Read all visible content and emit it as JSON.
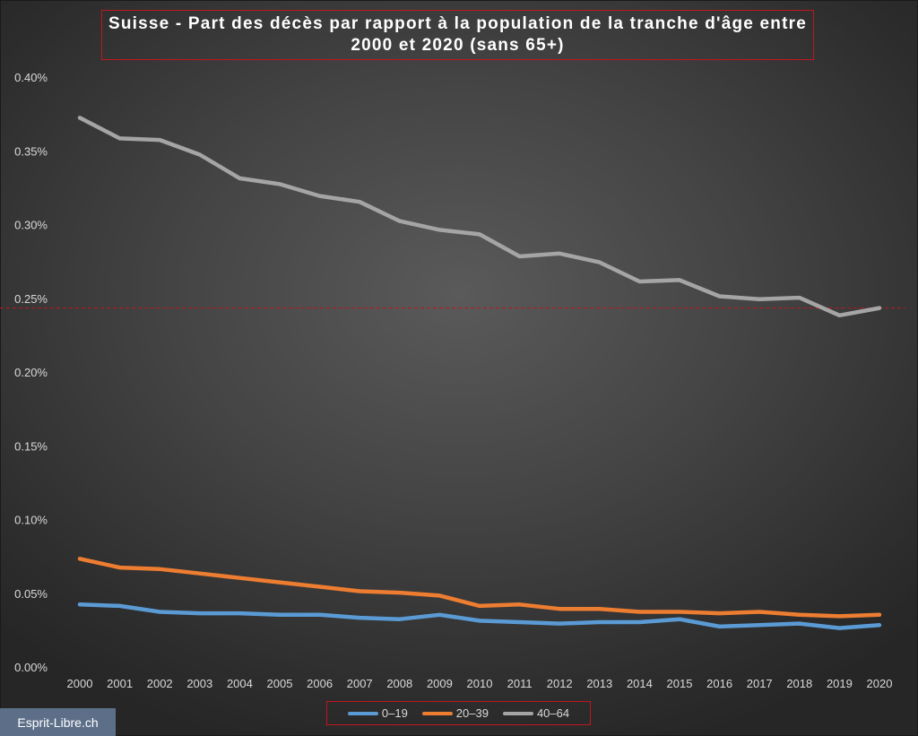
{
  "chart_data": {
    "type": "line",
    "title": "Suisse - Part des décès par rapport à la population de la tranche d'âge entre 2000 et 2020 (sans 65+)",
    "xlabel": "",
    "ylabel": "",
    "categories": [
      "2000",
      "2001",
      "2002",
      "2003",
      "2004",
      "2005",
      "2006",
      "2007",
      "2008",
      "2009",
      "2010",
      "2011",
      "2012",
      "2013",
      "2014",
      "2015",
      "2016",
      "2017",
      "2018",
      "2019",
      "2020"
    ],
    "ylim": [
      0,
      0.4
    ],
    "yticks": [
      0,
      0.05,
      0.1,
      0.15,
      0.2,
      0.25,
      0.3,
      0.35,
      0.4
    ],
    "ytick_labels": [
      "0.00%",
      "0.05%",
      "0.10%",
      "0.15%",
      "0.20%",
      "0.25%",
      "0.30%",
      "0.35%",
      "0.40%"
    ],
    "unit": "%",
    "grid": false,
    "legend_position": "bottom",
    "reference_line": {
      "value": 0.244,
      "color": "#c0161c",
      "style": "dashed"
    },
    "series": [
      {
        "name": "0–19",
        "color": "#5b9bd5",
        "values": [
          0.043,
          0.042,
          0.038,
          0.037,
          0.037,
          0.036,
          0.036,
          0.034,
          0.033,
          0.036,
          0.032,
          0.031,
          0.03,
          0.031,
          0.031,
          0.033,
          0.028,
          0.029,
          0.03,
          0.027,
          0.029
        ]
      },
      {
        "name": "20–39",
        "color": "#ed7d31",
        "values": [
          0.074,
          0.068,
          0.067,
          0.064,
          0.061,
          0.058,
          0.055,
          0.052,
          0.051,
          0.049,
          0.042,
          0.043,
          0.04,
          0.04,
          0.038,
          0.038,
          0.037,
          0.038,
          0.036,
          0.035,
          0.036
        ]
      },
      {
        "name": "40–64",
        "color": "#a5a5a5",
        "values": [
          0.373,
          0.359,
          0.358,
          0.348,
          0.332,
          0.328,
          0.32,
          0.316,
          0.303,
          0.297,
          0.294,
          0.279,
          0.281,
          0.275,
          0.262,
          0.263,
          0.252,
          0.25,
          0.251,
          0.239,
          0.244
        ]
      }
    ]
  },
  "watermark": "Esprit-Libre.ch"
}
